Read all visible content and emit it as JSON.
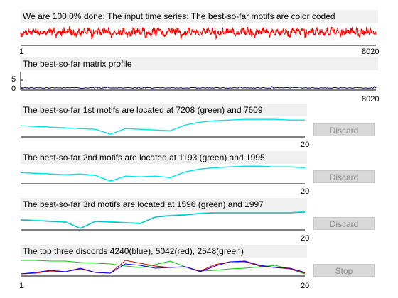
{
  "panels": {
    "series": {
      "title": "We are 100.0% done: The input time series: The best-so-far motifs are color coded",
      "x_start": "1",
      "x_end": "8020"
    },
    "profile": {
      "title": "The best-so-far matrix profile",
      "y_tick_top": "5",
      "y_tick_bottom": "0",
      "x_end": "8020"
    },
    "motif1": {
      "title": "The best-so-far 1st motifs are located at 7208 (green) and 7609",
      "x_end": "20",
      "button": "Discard"
    },
    "motif2": {
      "title": "The best-so-far 2nd motifs are located at 1193 (green) and 1995",
      "x_end": "20",
      "button": "Discard"
    },
    "motif3": {
      "title": "The best-so-far 3rd motifs are located at 1596 (green) and 1997",
      "x_end": "20",
      "button": "Discard"
    },
    "discords": {
      "title": "The top three discords 4240(blue), 5042(red), 2548(green)",
      "x_start": "1",
      "x_end": "20",
      "button": "Stop"
    }
  },
  "colors": {
    "series": "#ff0000",
    "profile": "#000080",
    "motif": "#00e5e5",
    "motif_dark": "#1f6f7a",
    "disc_blue": "#0000ff",
    "disc_red": "#cc0000",
    "disc_green": "#00cc00"
  }
}
